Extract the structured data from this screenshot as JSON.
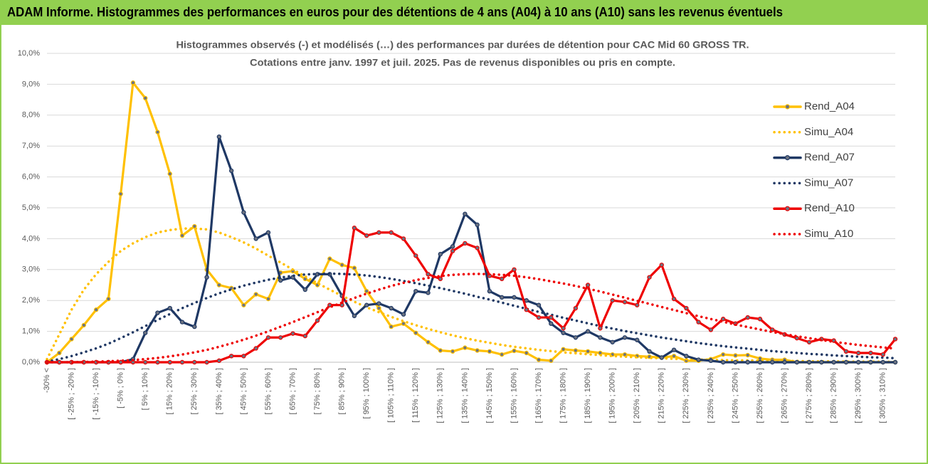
{
  "chart_data": {
    "type": "line",
    "title": "ADAM Informe. Histogrammes des performances en euros pour des détentions de 4 ans (A04) à 10 ans (A10) sans les revenus éventuels",
    "subtitle": [
      "Histogrammes observés (-) et modélisés (…) des performances par durées de détention pour CAC Mid 60 GROSS TR.",
      "Cotations entre janv. 1997 et juil. 2025. Pas de revenus disponibles ou pris en compte."
    ],
    "categories": [
      "-30% <",
      null,
      "[ -25% ; -20% ]",
      null,
      "[ -15% ; -10% ]",
      null,
      "[ -5% ; 0% ]",
      null,
      "[ 5% ; 10% ]",
      null,
      "[ 15% ; 20% ]",
      null,
      "[ 25% ; 30% ]",
      null,
      "[ 35% ; 40% ]",
      null,
      "[ 45% ; 50% ]",
      null,
      "[ 55% ; 60% ]",
      null,
      "[ 65% ; 70% ]",
      null,
      "[ 75% ; 80% ]",
      null,
      "[ 85% ; 90% ]",
      null,
      "[ 95% ; 100% ]",
      null,
      "[ 105% ; 110% ]",
      null,
      "[ 115% ; 120% ]",
      null,
      "[ 125% ; 130% ]",
      null,
      "[ 135% ; 140% ]",
      null,
      "[ 145% ; 150% ]",
      null,
      "[ 155% ; 160% ]",
      null,
      "[ 165% ; 170% ]",
      null,
      "[ 175% ; 180% ]",
      null,
      "[ 185% ; 190% ]",
      null,
      "[ 195% ; 200% ]",
      null,
      "[ 205% ; 210% ]",
      null,
      "[ 215% ; 220% ]",
      null,
      "[ 225% ; 230% ]",
      null,
      "[ 235% ; 240% ]",
      null,
      "[ 245% ; 250% ]",
      null,
      "[ 255% ; 260% ]",
      null,
      "[ 265% ; 270% ]",
      null,
      "[ 275% ; 280% ]",
      null,
      "[ 285% ; 290% ]",
      null,
      "[ 295% ; 300% ]",
      null,
      "[ 305% ; 310% ]",
      null
    ],
    "series": [
      {
        "name": "Rend_A04",
        "color": "#ffc000",
        "line_style": "solid",
        "markers": true,
        "values": [
          0,
          0.3,
          0.75,
          1.2,
          1.7,
          2.05,
          5.45,
          9.05,
          8.55,
          7.45,
          6.1,
          4.1,
          4.4,
          3.0,
          2.5,
          2.4,
          1.85,
          2.2,
          2.05,
          2.9,
          2.95,
          2.7,
          2.5,
          3.35,
          3.15,
          3.05,
          2.3,
          1.75,
          1.15,
          1.25,
          0.95,
          0.65,
          0.38,
          0.35,
          0.47,
          0.38,
          0.35,
          0.25,
          0.37,
          0.3,
          0.08,
          0.05,
          0.42,
          0.38,
          0.35,
          0.3,
          0.25,
          0.25,
          0.2,
          0.18,
          0.15,
          0.2,
          0.05,
          0.05,
          0.1,
          0.25,
          0.22,
          0.23,
          0.12,
          0.08,
          0.08,
          0,
          0,
          0,
          0,
          0,
          0,
          0,
          0,
          0
        ]
      },
      {
        "name": "Simu_A04",
        "color": "#ffc000",
        "line_style": "dotted",
        "markers": false,
        "values": [
          0.1,
          0.9,
          1.7,
          2.35,
          2.85,
          3.25,
          3.6,
          3.85,
          4.05,
          4.2,
          4.28,
          4.33,
          4.33,
          4.3,
          4.2,
          4.05,
          3.88,
          3.68,
          3.45,
          3.23,
          3.0,
          2.78,
          2.56,
          2.35,
          2.15,
          1.96,
          1.78,
          1.62,
          1.47,
          1.33,
          1.2,
          1.08,
          0.97,
          0.87,
          0.78,
          0.7,
          0.63,
          0.56,
          0.5,
          0.45,
          0.4,
          0.36,
          0.32,
          0.29,
          0.26,
          0.23,
          0.2,
          0.18,
          0.16,
          0.14,
          0.13,
          0.11,
          0.1,
          0.09,
          0.08,
          0.07,
          0.06,
          0.06,
          0.05,
          0.05,
          0.04,
          0.04,
          0.03,
          0.03,
          0.03,
          0.02,
          0.02,
          0.02,
          0.02,
          0.01
        ]
      },
      {
        "name": "Rend_A07",
        "color": "#1f3864",
        "line_style": "solid",
        "markers": true,
        "values": [
          0,
          0,
          0,
          0,
          0,
          0,
          0,
          0.1,
          0.95,
          1.6,
          1.75,
          1.3,
          1.15,
          2.75,
          7.3,
          6.2,
          4.85,
          4.0,
          4.2,
          2.65,
          2.75,
          2.35,
          2.85,
          2.85,
          2.15,
          1.5,
          1.85,
          1.9,
          1.75,
          1.55,
          2.3,
          2.25,
          3.5,
          3.75,
          4.8,
          4.45,
          2.3,
          2.1,
          2.1,
          2.0,
          1.85,
          1.25,
          0.95,
          0.8,
          1.0,
          0.8,
          0.65,
          0.8,
          0.72,
          0.35,
          0.15,
          0.4,
          0.2,
          0.08,
          0.05,
          0,
          0,
          0,
          0,
          0,
          0,
          0,
          0,
          0,
          0,
          0,
          0,
          0,
          0,
          0
        ]
      },
      {
        "name": "Simu_A07",
        "color": "#1f3864",
        "line_style": "dotted",
        "markers": false,
        "values": [
          0.02,
          0.1,
          0.2,
          0.32,
          0.45,
          0.6,
          0.78,
          0.97,
          1.17,
          1.37,
          1.56,
          1.75,
          1.92,
          2.08,
          2.23,
          2.36,
          2.48,
          2.58,
          2.67,
          2.74,
          2.8,
          2.84,
          2.86,
          2.87,
          2.86,
          2.84,
          2.81,
          2.76,
          2.7,
          2.63,
          2.56,
          2.48,
          2.4,
          2.31,
          2.22,
          2.12,
          2.03,
          1.93,
          1.83,
          1.73,
          1.63,
          1.54,
          1.44,
          1.35,
          1.26,
          1.17,
          1.09,
          1.01,
          0.94,
          0.87,
          0.8,
          0.74,
          0.68,
          0.62,
          0.57,
          0.52,
          0.48,
          0.44,
          0.4,
          0.36,
          0.33,
          0.3,
          0.27,
          0.25,
          0.22,
          0.2,
          0.18,
          0.16,
          0.15,
          0.13
        ]
      },
      {
        "name": "Rend_A10",
        "color": "#ee0000",
        "line_style": "solid",
        "markers": true,
        "values": [
          0,
          0,
          0,
          0,
          0,
          0,
          0,
          0,
          0,
          0,
          0,
          0,
          0,
          0,
          0.05,
          0.2,
          0.2,
          0.45,
          0.8,
          0.8,
          0.93,
          0.85,
          1.35,
          1.85,
          1.85,
          4.35,
          4.1,
          4.2,
          4.2,
          4.0,
          3.45,
          2.85,
          2.7,
          3.6,
          3.85,
          3.7,
          2.8,
          2.7,
          3.0,
          1.7,
          1.45,
          1.45,
          1.1,
          1.75,
          2.5,
          1.1,
          2.0,
          1.95,
          1.85,
          2.75,
          3.15,
          2.05,
          1.75,
          1.3,
          1.05,
          1.4,
          1.25,
          1.45,
          1.4,
          1.05,
          0.9,
          0.78,
          0.65,
          0.75,
          0.7,
          0.35,
          0.3,
          0.3,
          0.25,
          0.75
        ]
      },
      {
        "name": "Simu_A10",
        "color": "#ee0000",
        "line_style": "dotted",
        "markers": false,
        "values": [
          0,
          0,
          0,
          0.01,
          0.02,
          0.03,
          0.05,
          0.07,
          0.1,
          0.14,
          0.19,
          0.25,
          0.32,
          0.4,
          0.5,
          0.61,
          0.73,
          0.86,
          1.0,
          1.15,
          1.3,
          1.46,
          1.62,
          1.78,
          1.93,
          2.08,
          2.22,
          2.35,
          2.47,
          2.57,
          2.66,
          2.73,
          2.79,
          2.83,
          2.85,
          2.86,
          2.85,
          2.83,
          2.8,
          2.75,
          2.69,
          2.62,
          2.55,
          2.47,
          2.38,
          2.29,
          2.19,
          2.09,
          1.99,
          1.89,
          1.79,
          1.69,
          1.59,
          1.49,
          1.4,
          1.31,
          1.22,
          1.14,
          1.06,
          0.98,
          0.91,
          0.84,
          0.78,
          0.72,
          0.66,
          0.61,
          0.56,
          0.52,
          0.48,
          0.44
        ]
      }
    ],
    "ylim": [
      0,
      10
    ],
    "yticks": [
      {
        "value": 0,
        "label": "0,0%"
      },
      {
        "value": 1,
        "label": "1,0%"
      },
      {
        "value": 2,
        "label": "2,0%"
      },
      {
        "value": 3,
        "label": "3,0%"
      },
      {
        "value": 4,
        "label": "4,0%"
      },
      {
        "value": 5,
        "label": "5,0%"
      },
      {
        "value": 6,
        "label": "6,0%"
      },
      {
        "value": 7,
        "label": "7,0%"
      },
      {
        "value": 8,
        "label": "8,0%"
      },
      {
        "value": 9,
        "label": "9,0%"
      },
      {
        "value": 10,
        "label": "10,0%"
      }
    ],
    "grid": true,
    "legend": "right"
  }
}
